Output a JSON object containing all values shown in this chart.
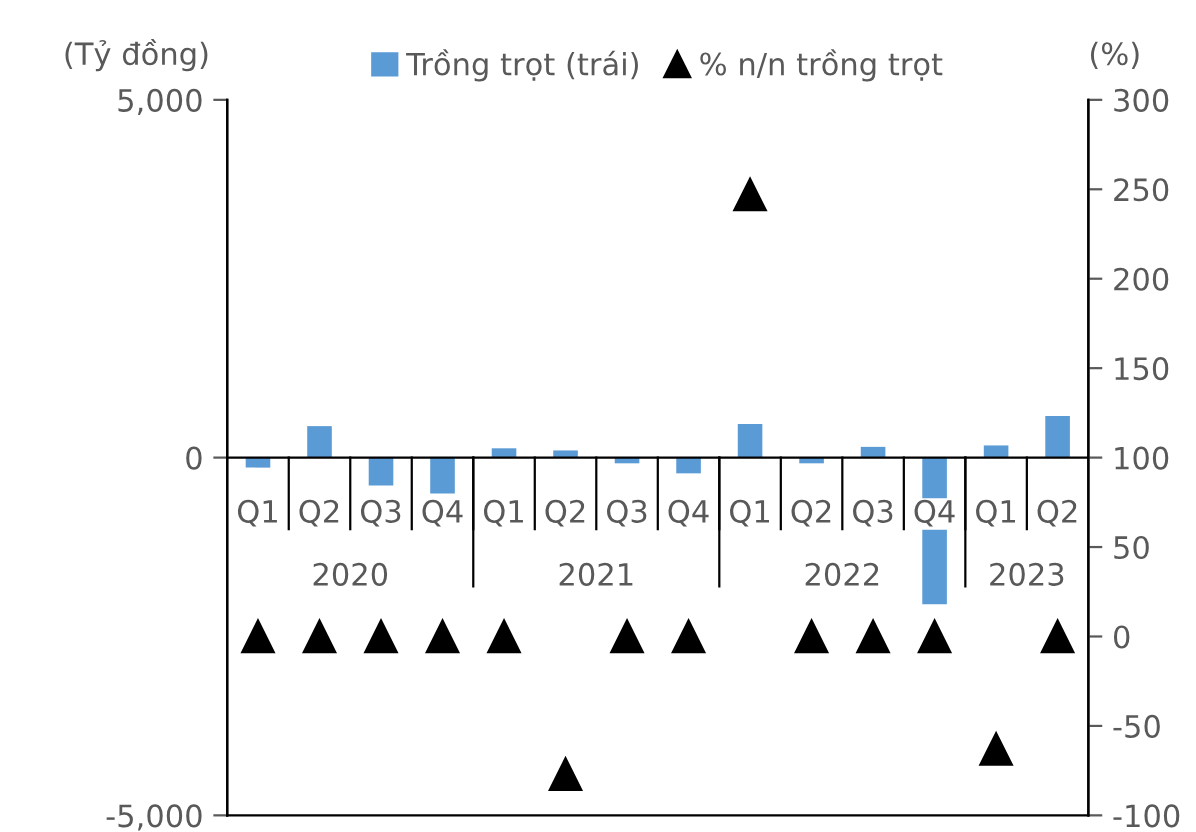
{
  "chart_data": {
    "type": "bar",
    "ylabel": "(Tỷ đồng)",
    "y2label": "(%)",
    "categories": [
      "Q1",
      "Q2",
      "Q3",
      "Q4",
      "Q1",
      "Q2",
      "Q3",
      "Q4",
      "Q1",
      "Q2",
      "Q3",
      "Q4",
      "Q1",
      "Q2"
    ],
    "annotations": [
      "2020",
      "2021",
      "2022",
      "2023"
    ],
    "series": [
      {
        "name": "Trồng trọt (trái)",
        "color": "#5b9bd5",
        "values": [
          -140,
          440,
          -390,
          -500,
          130,
          100,
          -80,
          -220,
          470,
          -80,
          150,
          -2050,
          170,
          580
        ]
      },
      {
        "name": "% n/n trồng trọt",
        "type": "scatter",
        "axis": "y2",
        "color": "#000000",
        "marker": "triangle",
        "values": [
          0,
          0,
          0,
          0,
          0,
          -77,
          0,
          0,
          247,
          0,
          0,
          0,
          -63,
          0
        ]
      }
    ],
    "ylim": [
      -5000,
      5000
    ],
    "yticks": [
      {
        "value": -5000,
        "label": "-5,000"
      },
      0,
      {
        "value": 5000,
        "label": "5,000"
      }
    ],
    "y2lim": [
      -100,
      300
    ],
    "y2ticks": [
      -100,
      -50,
      0,
      50,
      100,
      150,
      200,
      250,
      300
    ],
    "legend": "top",
    "grid": false
  }
}
